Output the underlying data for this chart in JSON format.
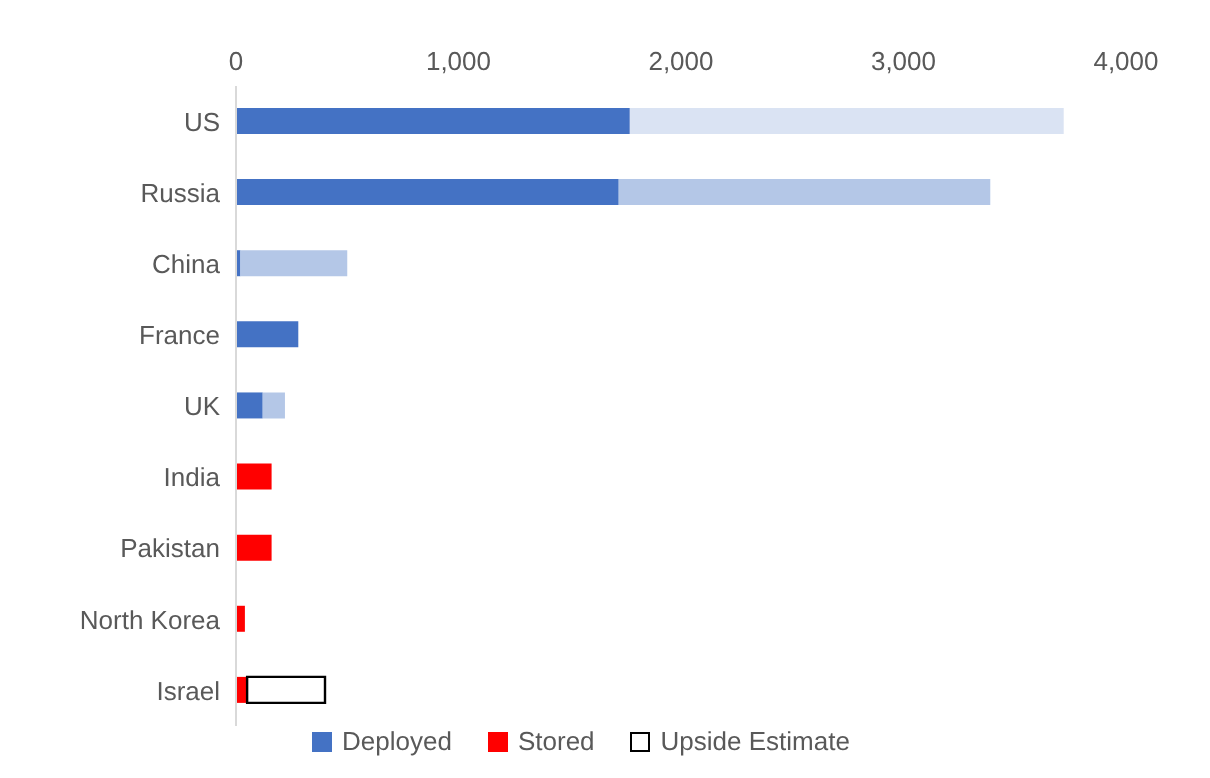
{
  "chart_data": {
    "type": "bar",
    "orientation": "horizontal",
    "stacked": true,
    "categories": [
      "US",
      "Russia",
      "China",
      "France",
      "UK",
      "India",
      "Pakistan",
      "North Korea",
      "Israel"
    ],
    "series": [
      {
        "name": "Deployed",
        "color": "#4472c4",
        "values": [
          1770,
          1720,
          20,
          280,
          120,
          0,
          0,
          0,
          0
        ]
      },
      {
        "name": "Stored",
        "color": "#ff0000",
        "colors": [
          "#dae3f3",
          "#b4c7e7",
          "#b4c7e7",
          "#b4c7e7",
          "#b4c7e7",
          "#ff0000",
          "#ff0000",
          "#ff0000",
          "#ff0000"
        ],
        "values": [
          1950,
          1670,
          480,
          0,
          100,
          160,
          160,
          40,
          50
        ]
      },
      {
        "name": "Upside Estimate",
        "color": "#ffffff",
        "values": [
          0,
          0,
          0,
          0,
          0,
          0,
          0,
          0,
          350
        ]
      }
    ],
    "xlim": [
      0,
      4000
    ],
    "xticks": [
      {
        "value": 0,
        "label": "0"
      },
      {
        "value": 1000,
        "label": "1,000"
      },
      {
        "value": 2000,
        "label": "2,000"
      },
      {
        "value": 3000,
        "label": "3,000"
      },
      {
        "value": 4000,
        "label": "4,000"
      }
    ],
    "grid": false,
    "legend": "bottom"
  }
}
